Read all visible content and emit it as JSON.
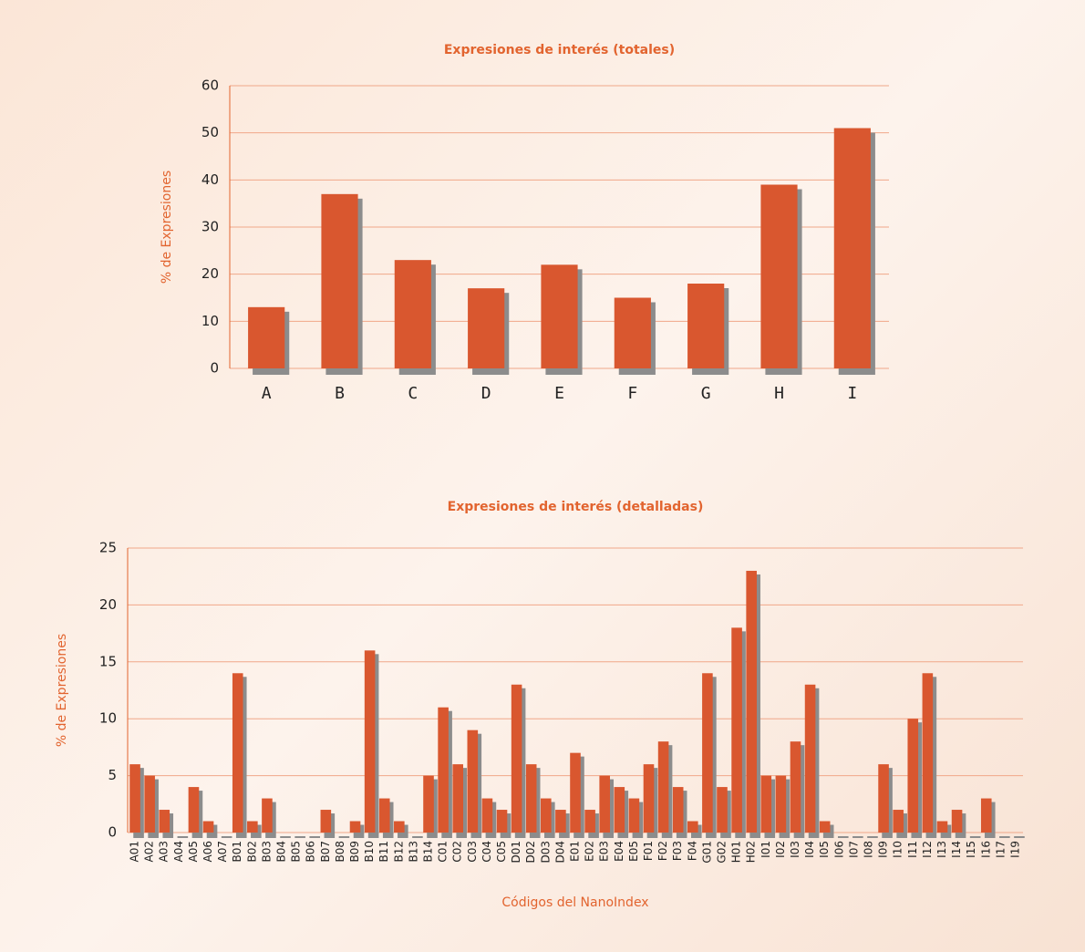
{
  "chart_data": [
    {
      "type": "bar",
      "title": "Expresiones de interés (totales)",
      "ylabel": "% de Expresiones",
      "categories": [
        "A",
        "B",
        "C",
        "D",
        "E",
        "F",
        "G",
        "H",
        "I"
      ],
      "values": [
        13,
        37,
        23,
        17,
        22,
        15,
        18,
        39,
        51
      ],
      "color": "#d9572f",
      "ylim": [
        0,
        60
      ],
      "yticks": [
        0,
        10,
        20,
        30,
        40,
        50,
        60
      ],
      "grid": true
    },
    {
      "type": "bar",
      "title": "Expresiones de interés (detalladas)",
      "ylabel": "% de Expresiones",
      "xlabel": "Códigos del NanoIndex",
      "categories": [
        "A01",
        "A02",
        "A03",
        "A04",
        "A05",
        "A06",
        "A07",
        "B01",
        "B02",
        "B03",
        "B04",
        "B05",
        "B06",
        "B07",
        "B08",
        "B09",
        "B10",
        "B11",
        "B12",
        "B13",
        "B14",
        "C01",
        "C02",
        "C03",
        "C04",
        "C05",
        "D01",
        "D02",
        "D03",
        "D04",
        "E01",
        "E02",
        "E03",
        "E04",
        "E05",
        "F01",
        "F02",
        "F03",
        "F04",
        "G01",
        "G02",
        "H01",
        "H02",
        "I01",
        "I02",
        "I03",
        "I04",
        "I05",
        "I06",
        "I07",
        "I08",
        "I09",
        "I10",
        "I11",
        "I12",
        "I13",
        "I14",
        "I15",
        "I16",
        "I17",
        "I19"
      ],
      "values": [
        6,
        5,
        2,
        0,
        4,
        1,
        0,
        14,
        1,
        3,
        0,
        0,
        0,
        2,
        0,
        1,
        16,
        3,
        1,
        0,
        5,
        11,
        6,
        9,
        3,
        2,
        13,
        6,
        3,
        2,
        7,
        2,
        5,
        4,
        3,
        6,
        8,
        4,
        1,
        14,
        4,
        18,
        23,
        5,
        5,
        8,
        13,
        1,
        0,
        0,
        0,
        6,
        2,
        10,
        14,
        1,
        2,
        0,
        3,
        0,
        0
      ],
      "color": "#d9572f",
      "ylim": [
        0,
        25
      ],
      "yticks": [
        0,
        5,
        10,
        15,
        20,
        25
      ],
      "grid": true
    }
  ]
}
